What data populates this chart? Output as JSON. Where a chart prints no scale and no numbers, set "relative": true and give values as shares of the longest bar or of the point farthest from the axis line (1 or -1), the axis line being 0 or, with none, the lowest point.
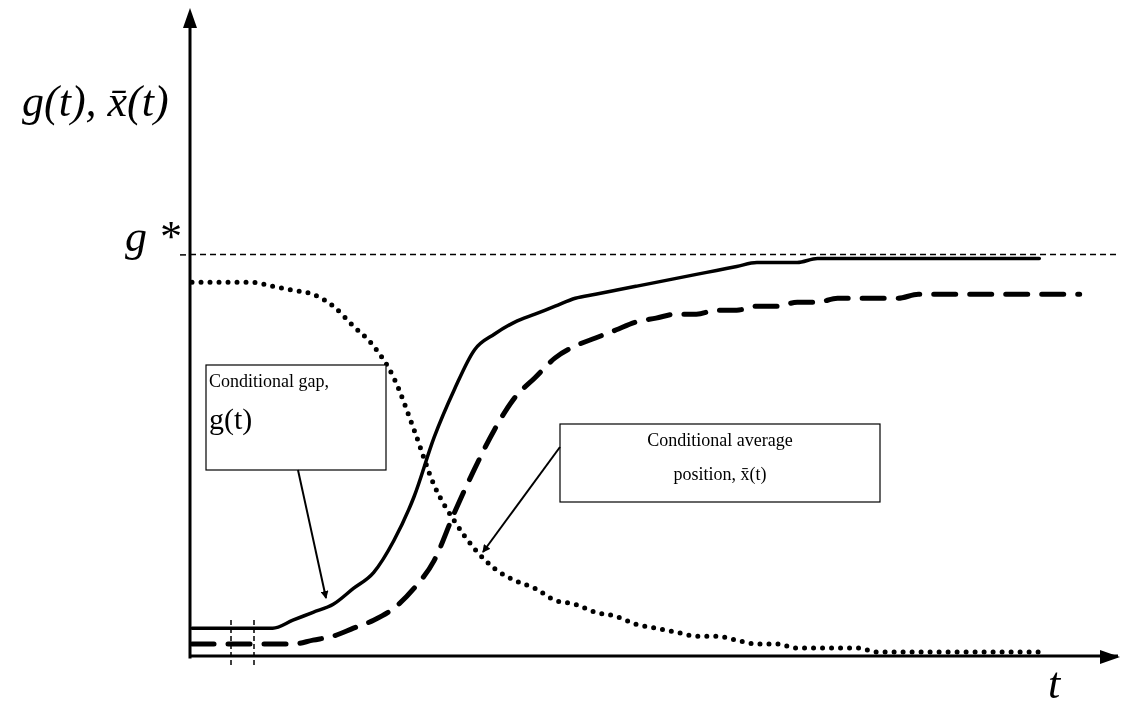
{
  "chart_data": {
    "type": "line",
    "relative": true,
    "ylabel": "g(t), x̄(t)",
    "xlabel": "t",
    "categories": [
      null,
      null,
      null,
      null,
      null,
      null,
      null,
      null,
      null,
      null,
      null,
      null,
      null,
      null,
      null,
      null,
      null,
      null,
      null,
      null,
      null,
      null,
      null,
      null,
      null,
      null,
      null,
      null,
      null,
      null,
      null,
      null,
      null,
      null,
      null,
      null,
      null,
      null,
      null,
      null,
      null,
      null,
      null,
      null,
      null
    ],
    "series": [
      {
        "color": "#000000",
        "line_style": "solid",
        "values": [
          0.07,
          0.07,
          0.07,
          0.07,
          0.07,
          0.09,
          0.11,
          0.13,
          0.17,
          0.21,
          0.29,
          0.4,
          0.55,
          0.67,
          0.77,
          0.81,
          0.84,
          0.86,
          0.88,
          0.9,
          0.91,
          0.92,
          0.93,
          0.94,
          0.95,
          0.96,
          0.97,
          0.98,
          0.99,
          0.99,
          0.99,
          1.0,
          1.0,
          1.0,
          1.0,
          1.0,
          1.0,
          1.0,
          1.0,
          1.0,
          1.0,
          1.0,
          1.0,
          null,
          null
        ]
      },
      {
        "color": "#000000",
        "line_style": "dashed",
        "values": [
          0.03,
          0.03,
          0.03,
          0.03,
          0.03,
          0.03,
          0.04,
          0.05,
          0.07,
          0.09,
          0.12,
          0.17,
          0.24,
          0.36,
          0.47,
          0.57,
          0.65,
          0.7,
          0.75,
          0.78,
          0.8,
          0.82,
          0.84,
          0.85,
          0.86,
          0.86,
          0.87,
          0.87,
          0.88,
          0.88,
          0.89,
          0.89,
          0.9,
          0.9,
          0.9,
          0.9,
          0.91,
          0.91,
          0.91,
          0.91,
          0.91,
          0.91,
          0.91,
          0.91,
          0.91
        ]
      },
      {
        "color": "#000000",
        "line_style": "dotted",
        "values": [
          0.94,
          0.94,
          0.94,
          0.94,
          0.93,
          0.92,
          0.91,
          0.88,
          0.83,
          0.78,
          0.7,
          0.57,
          0.43,
          0.34,
          0.27,
          0.22,
          0.19,
          0.17,
          0.14,
          0.13,
          0.11,
          0.1,
          0.08,
          0.07,
          0.06,
          0.05,
          0.05,
          0.04,
          0.03,
          0.03,
          0.02,
          0.02,
          0.02,
          0.02,
          0.01,
          0.01,
          0.01,
          0.01,
          0.01,
          0.01,
          0.01,
          0.01,
          0.01,
          null,
          null
        ]
      }
    ],
    "ref_lines": [
      {
        "axis": "y",
        "value": 1.01,
        "label": "g *",
        "color": "#000000",
        "line_style": "dashed"
      }
    ],
    "annotations": [
      "Conditional gap,\ng(t)",
      "Conditional average\nposition, x̄(t)"
    ],
    "marker": "none"
  }
}
